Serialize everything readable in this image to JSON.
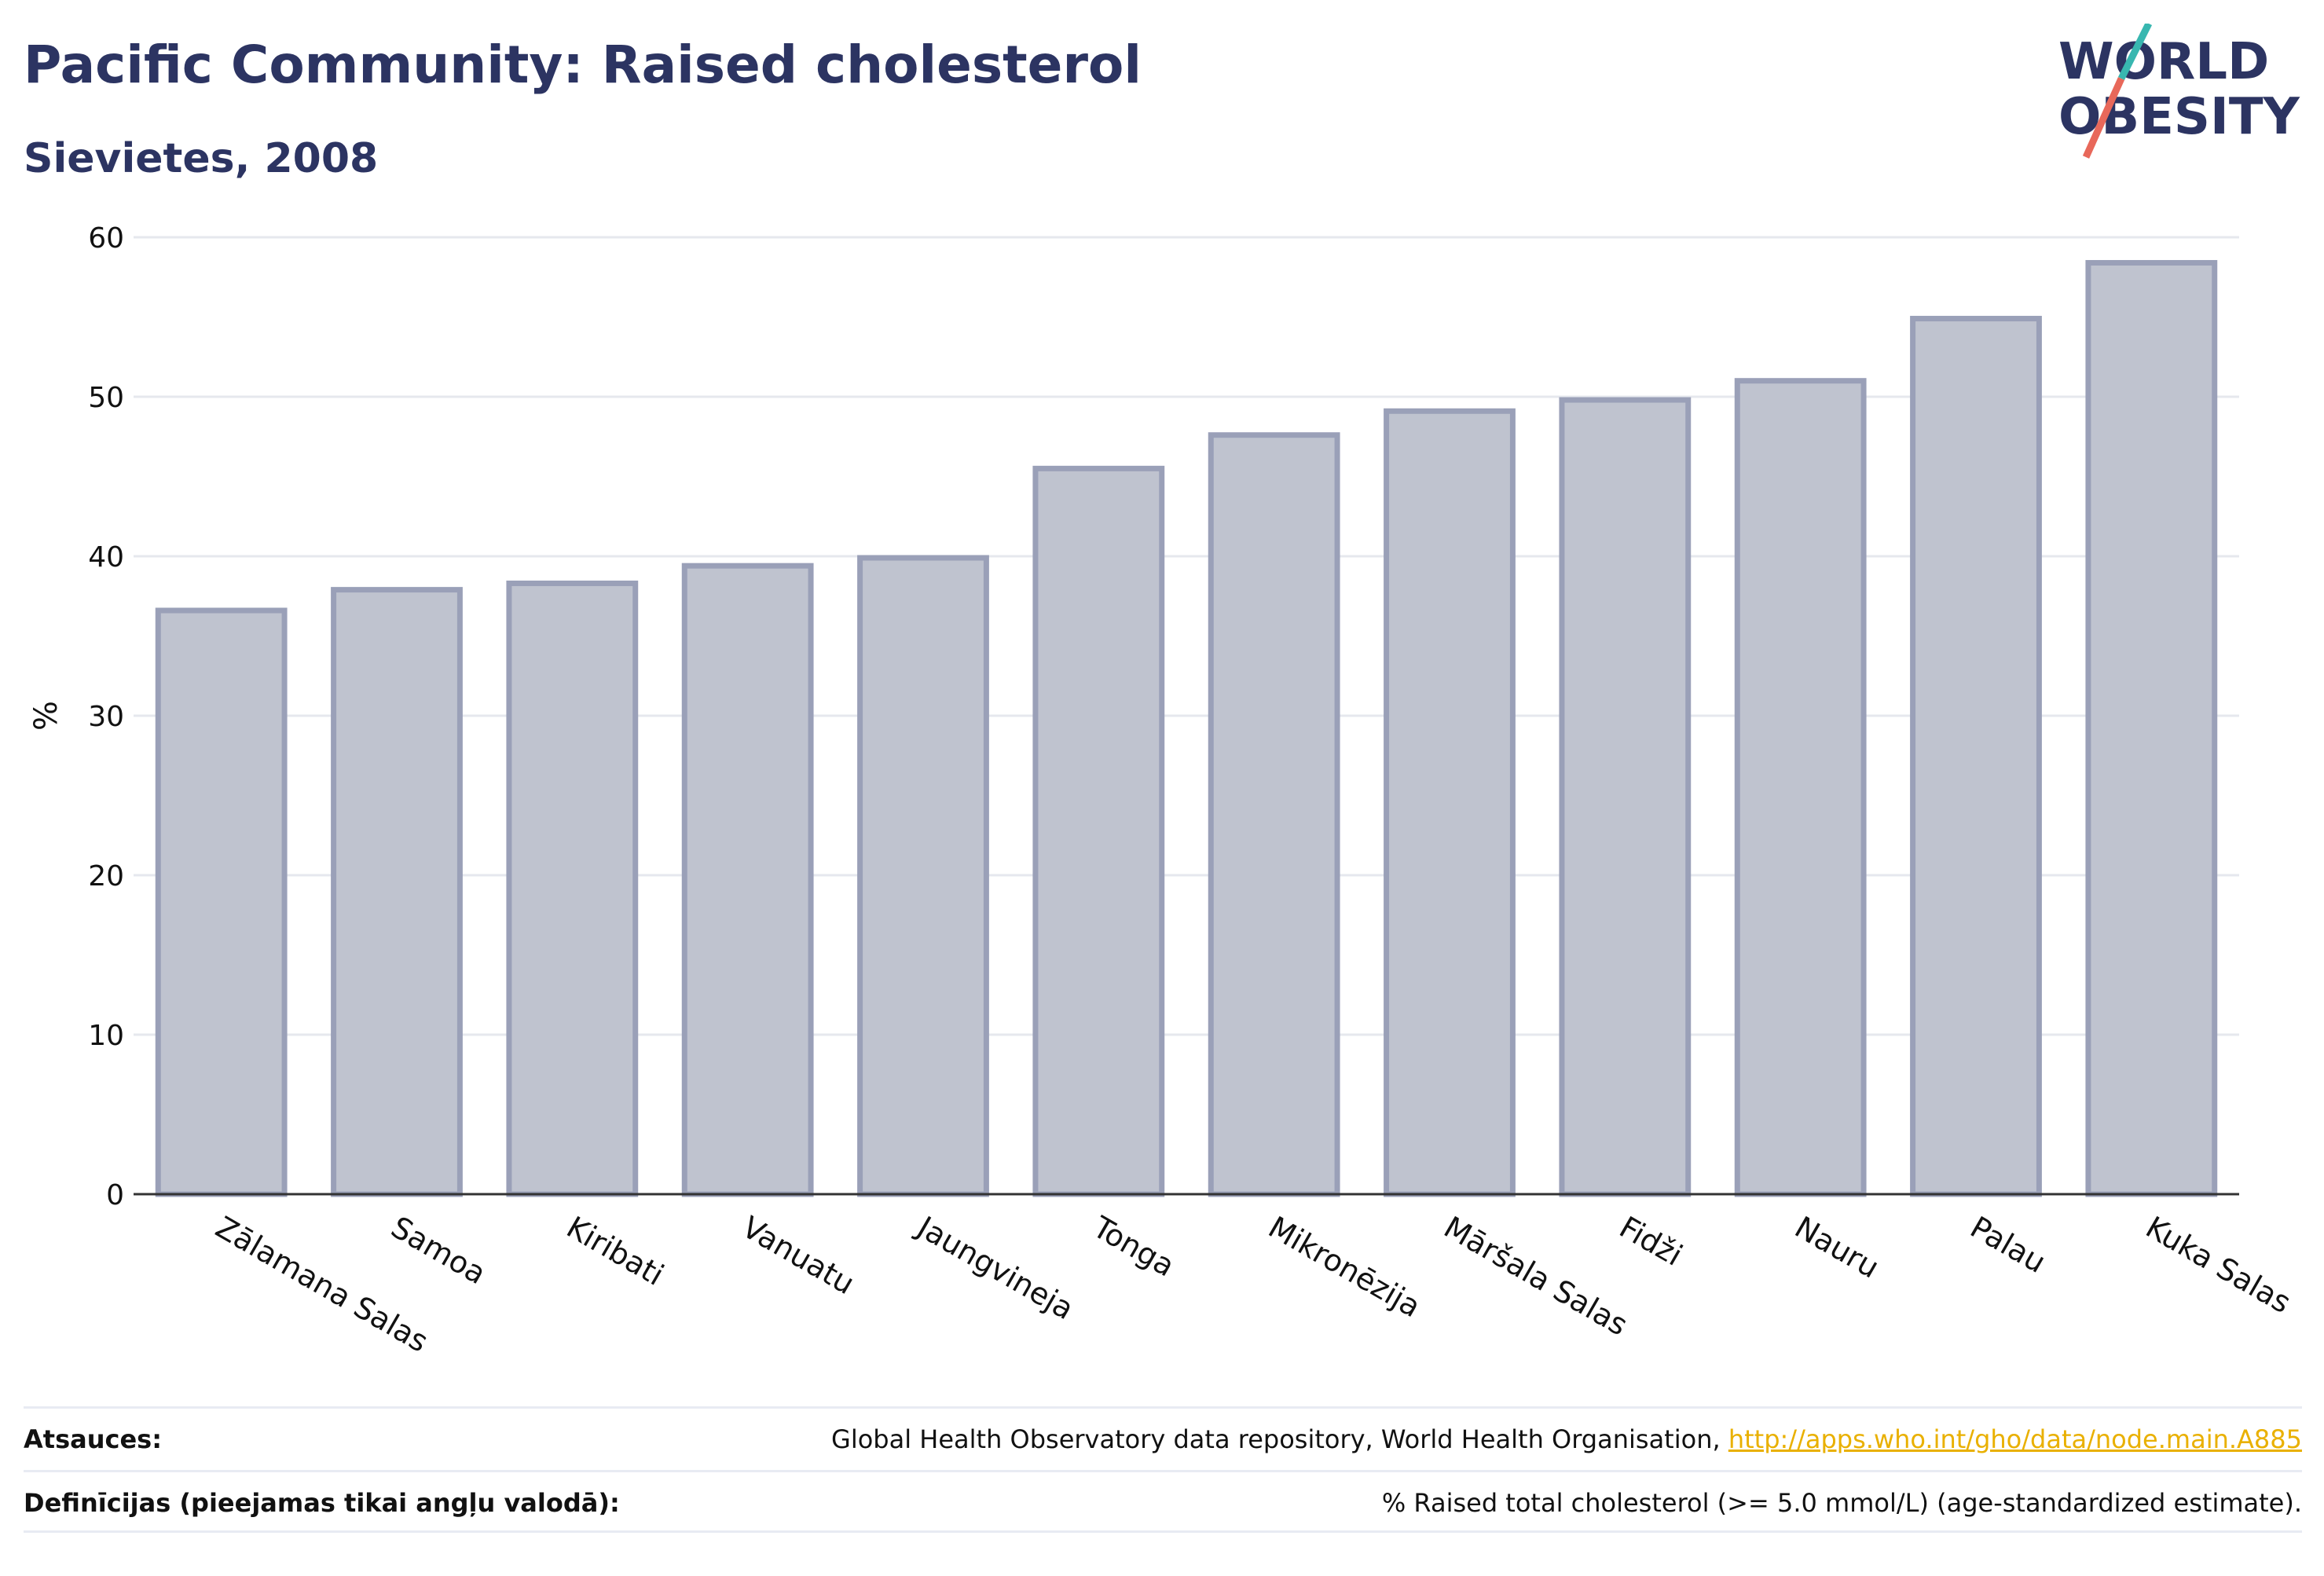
{
  "header": {
    "title": "Pacific Community: Raised cholesterol",
    "subtitle": "Sievietes, 2008"
  },
  "logo": {
    "line1": "WORLD",
    "line2": "OBESITY",
    "colors": {
      "text": "#2c3462",
      "slash_top": "#38b7b0",
      "slash_bottom": "#e8685a"
    }
  },
  "chart_data": {
    "type": "bar",
    "categories": [
      "Zālamana Salas",
      "Samoa",
      "Kiribati",
      "Vanuatu",
      "Jaungvineja",
      "Tonga",
      "Mikronēzija",
      "Māršala Salas",
      "Fidži",
      "Nauru",
      "Palau",
      "Kuka Salas"
    ],
    "values": [
      36.6,
      37.9,
      38.3,
      39.4,
      39.9,
      45.5,
      47.6,
      49.1,
      49.8,
      51.0,
      54.9,
      58.4
    ],
    "ylabel": "%",
    "xlabel": "",
    "ylim": [
      0,
      60
    ],
    "yticks": [
      0,
      10,
      20,
      30,
      40,
      50,
      60
    ],
    "grid": true,
    "colors": {
      "bar_fill": "#bfc3cf",
      "bar_stroke": "#9aa0b8",
      "axis": "#333333",
      "grid": "#e6e8ee"
    }
  },
  "footer": {
    "sources_label": "Atsauces:",
    "sources_text": "Global Health Observatory data repository, World Health Organisation, ",
    "sources_link": "http://apps.who.int/gho/data/node.main.A885",
    "definitions_label": "Definīcijas (pieejamas tikai angļu valodā):",
    "definitions_text": "% Raised total cholesterol (>= 5.0 mmol/L) (age-standardized estimate)."
  }
}
